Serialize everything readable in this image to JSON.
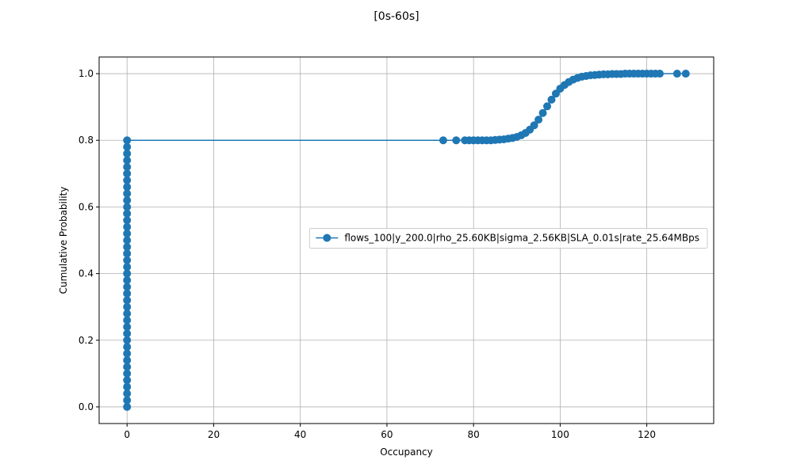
{
  "chart_data": {
    "type": "line",
    "title": "[0s-60s]",
    "xlabel": "Occupancy",
    "ylabel": "Cumulative Probability",
    "xlim": [
      -6.45,
      135.45
    ],
    "ylim": [
      -0.05,
      1.05
    ],
    "xticks": [
      0,
      20,
      40,
      60,
      80,
      100,
      120
    ],
    "yticks": [
      0.0,
      0.2,
      0.4,
      0.6,
      0.8,
      1.0
    ],
    "xtick_labels": [
      "0",
      "20",
      "40",
      "60",
      "80",
      "100",
      "120"
    ],
    "ytick_labels": [
      "0.0",
      "0.2",
      "0.4",
      "0.6",
      "0.8",
      "1.0"
    ],
    "grid": true,
    "legend_position": "center-right",
    "series": [
      {
        "name": "flows_100|y_200.0|rho_25.60KB|sigma_2.56KB|SLA_0.01s|rate_25.64MBps",
        "color": "#1f77b4",
        "marker": "circle",
        "x": [
          0,
          0,
          0,
          0,
          0,
          0,
          0,
          0,
          0,
          0,
          0,
          0,
          0,
          0,
          0,
          0,
          0,
          0,
          0,
          0,
          0,
          0,
          0,
          0,
          0,
          0,
          0,
          0,
          0,
          0,
          0,
          0,
          0,
          0,
          0,
          0,
          0,
          0,
          0,
          0,
          0,
          73,
          76,
          78,
          79,
          80,
          81,
          82,
          83,
          84,
          85,
          86,
          87,
          88,
          89,
          90,
          91,
          92,
          93,
          94,
          95,
          96,
          97,
          98,
          99,
          100,
          101,
          102,
          103,
          104,
          105,
          106,
          107,
          108,
          109,
          110,
          111,
          112,
          113,
          114,
          115,
          116,
          117,
          118,
          119,
          120,
          121,
          122,
          123,
          127,
          129
        ],
        "y": [
          0,
          0.02,
          0.04,
          0.06,
          0.08,
          0.1,
          0.12,
          0.14,
          0.16,
          0.18,
          0.2,
          0.22,
          0.24,
          0.26,
          0.28,
          0.3,
          0.32,
          0.34,
          0.36,
          0.38,
          0.4,
          0.42,
          0.44,
          0.46,
          0.48,
          0.5,
          0.52,
          0.54,
          0.56,
          0.58,
          0.6,
          0.62,
          0.64,
          0.66,
          0.68,
          0.7,
          0.72,
          0.74,
          0.76,
          0.78,
          0.8,
          0.8,
          0.8,
          0.8,
          0.8,
          0.8,
          0.8,
          0.8,
          0.8,
          0.8,
          0.801,
          0.802,
          0.803,
          0.805,
          0.807,
          0.81,
          0.815,
          0.822,
          0.832,
          0.845,
          0.862,
          0.882,
          0.902,
          0.922,
          0.94,
          0.955,
          0.966,
          0.975,
          0.982,
          0.987,
          0.991,
          0.993,
          0.995,
          0.996,
          0.997,
          0.998,
          0.998,
          0.999,
          0.999,
          0.999,
          1.0,
          1.0,
          1.0,
          1.0,
          1.0,
          1.0,
          1.0,
          1.0,
          1.0,
          1.0,
          1.0
        ]
      }
    ]
  }
}
